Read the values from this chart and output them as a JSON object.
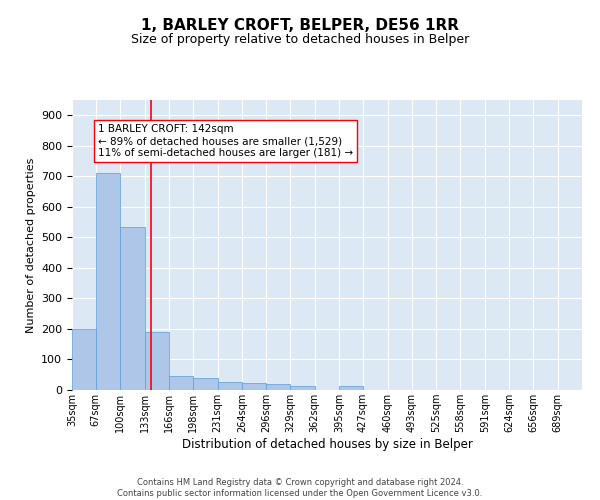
{
  "title": "1, BARLEY CROFT, BELPER, DE56 1RR",
  "subtitle": "Size of property relative to detached houses in Belper",
  "xlabel": "Distribution of detached houses by size in Belper",
  "ylabel": "Number of detached properties",
  "bar_color": "#aec6e8",
  "bar_edge_color": "#5b9bd5",
  "bg_color": "#dce9f5",
  "grid_color": "#ffffff",
  "bin_labels": [
    "35sqm",
    "67sqm",
    "100sqm",
    "133sqm",
    "166sqm",
    "198sqm",
    "231sqm",
    "264sqm",
    "296sqm",
    "329sqm",
    "362sqm",
    "395sqm",
    "427sqm",
    "460sqm",
    "493sqm",
    "525sqm",
    "558sqm",
    "591sqm",
    "624sqm",
    "656sqm",
    "689sqm"
  ],
  "bar_values": [
    200,
    710,
    535,
    190,
    45,
    38,
    27,
    23,
    20,
    14,
    0,
    12,
    0,
    0,
    0,
    0,
    0,
    0,
    0,
    0,
    0
  ],
  "bin_edges": [
    35,
    67,
    100,
    133,
    166,
    198,
    231,
    264,
    296,
    329,
    362,
    395,
    427,
    460,
    493,
    525,
    558,
    591,
    624,
    656,
    689,
    722
  ],
  "redline_x": 142,
  "ylim": [
    0,
    950
  ],
  "yticks": [
    0,
    100,
    200,
    300,
    400,
    500,
    600,
    700,
    800,
    900
  ],
  "annotation_lines": [
    "1 BARLEY CROFT: 142sqm",
    "← 89% of detached houses are smaller (1,529)",
    "11% of semi-detached houses are larger (181) →"
  ],
  "footer1": "Contains HM Land Registry data © Crown copyright and database right 2024.",
  "footer2": "Contains public sector information licensed under the Open Government Licence v3.0.",
  "title_fontsize": 11,
  "subtitle_fontsize": 9,
  "annotation_fontsize": 7.5,
  "ylabel_fontsize": 8,
  "xlabel_fontsize": 8.5,
  "tick_fontsize": 7,
  "ytick_fontsize": 8,
  "footer_fontsize": 6
}
